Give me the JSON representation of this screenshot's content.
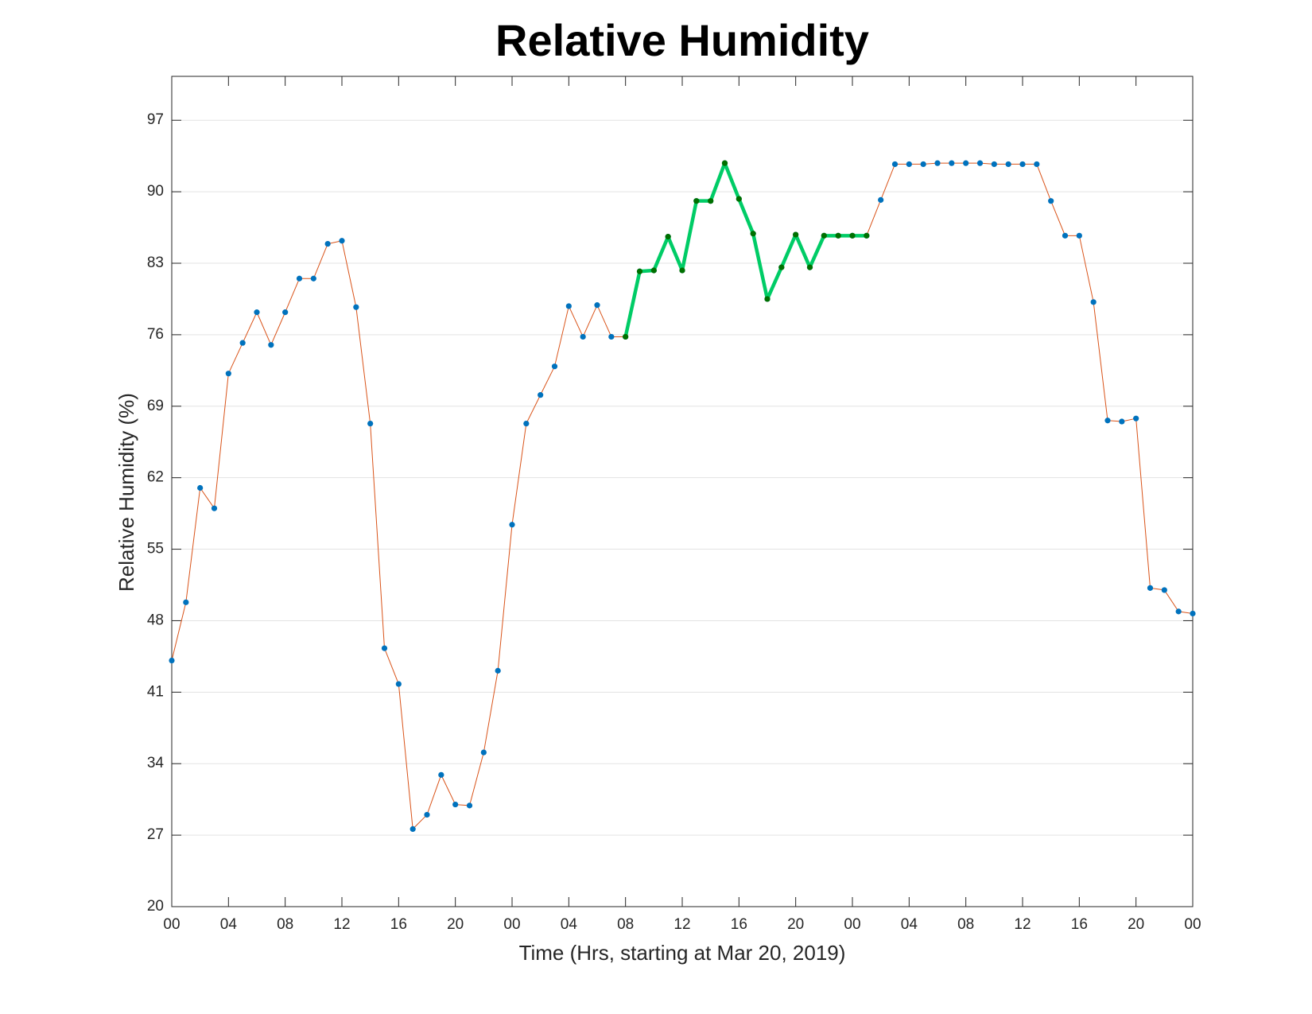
{
  "chart_data": {
    "type": "line",
    "title": "Relative Humidity",
    "x_label": "Time (Hrs, starting at Mar 20, 2019)",
    "y_label": "Relative Humidity (%)",
    "xlim": [
      0,
      72
    ],
    "ylim": [
      20,
      101.3
    ],
    "xticks": [
      {
        "value": 0,
        "label": "00"
      },
      {
        "value": 4,
        "label": "04"
      },
      {
        "value": 8,
        "label": "08"
      },
      {
        "value": 12,
        "label": "12"
      },
      {
        "value": 16,
        "label": "16"
      },
      {
        "value": 20,
        "label": "20"
      },
      {
        "value": 24,
        "label": "00"
      },
      {
        "value": 28,
        "label": "04"
      },
      {
        "value": 32,
        "label": "08"
      },
      {
        "value": 36,
        "label": "12"
      },
      {
        "value": 40,
        "label": "16"
      },
      {
        "value": 44,
        "label": "20"
      },
      {
        "value": 48,
        "label": "00"
      },
      {
        "value": 52,
        "label": "04"
      },
      {
        "value": 56,
        "label": "08"
      },
      {
        "value": 60,
        "label": "12"
      },
      {
        "value": 64,
        "label": "16"
      },
      {
        "value": 68,
        "label": "20"
      },
      {
        "value": 72,
        "label": "00"
      }
    ],
    "yticks": [
      20,
      27,
      34,
      41,
      48,
      55,
      62,
      69,
      76,
      83,
      90,
      97
    ],
    "grid": true,
    "series": [
      {
        "color": "#d95319",
        "marker_color": "#0072bd",
        "line_width": 1,
        "x": [
          0,
          1,
          2,
          3,
          4,
          5,
          6,
          7,
          8,
          9,
          10,
          11,
          12,
          13,
          14,
          15,
          16,
          17,
          18,
          19,
          20,
          21,
          22,
          23,
          24,
          25,
          26,
          27,
          28,
          29,
          30,
          31,
          32,
          33,
          34,
          35,
          36,
          37,
          38,
          39,
          40,
          41,
          42,
          43,
          44,
          45,
          46,
          47,
          48,
          49,
          50,
          51,
          52,
          53,
          54,
          55,
          56,
          57,
          58,
          59,
          60,
          61,
          62,
          63,
          64,
          65,
          66,
          67,
          68,
          69,
          70,
          71,
          72
        ],
        "values": [
          44.1,
          49.8,
          61.0,
          59.0,
          72.2,
          75.2,
          78.2,
          75.0,
          78.2,
          81.5,
          81.5,
          84.9,
          85.2,
          78.7,
          67.3,
          45.3,
          41.8,
          27.6,
          29.0,
          32.9,
          30.0,
          29.9,
          35.1,
          43.1,
          57.4,
          67.3,
          70.1,
          72.9,
          78.8,
          75.8,
          78.9,
          75.8,
          75.8,
          82.2,
          82.3,
          85.6,
          82.3,
          89.1,
          89.1,
          92.8,
          89.3,
          85.9,
          79.5,
          82.6,
          85.8,
          82.6,
          85.7,
          85.7,
          85.7,
          85.7,
          89.2,
          92.7,
          92.7,
          92.7,
          92.8,
          92.8,
          92.8,
          92.8,
          92.7,
          92.7,
          92.7,
          92.7,
          89.1,
          85.7,
          85.7,
          79.2,
          67.6,
          67.5,
          67.8,
          51.2,
          51.0,
          48.9,
          48.7
        ]
      },
      {
        "color": "#00cc66",
        "marker_color": "#007000",
        "line_width": 4.5,
        "x": [
          32,
          33,
          34,
          35,
          36,
          37,
          38,
          39,
          40,
          41,
          42,
          43,
          44,
          45,
          46,
          47,
          48,
          49
        ],
        "values": [
          75.8,
          82.2,
          82.3,
          85.6,
          82.3,
          89.1,
          89.1,
          92.8,
          89.3,
          85.9,
          79.5,
          82.6,
          85.8,
          82.6,
          85.7,
          85.7,
          85.7,
          85.7
        ]
      }
    ]
  }
}
